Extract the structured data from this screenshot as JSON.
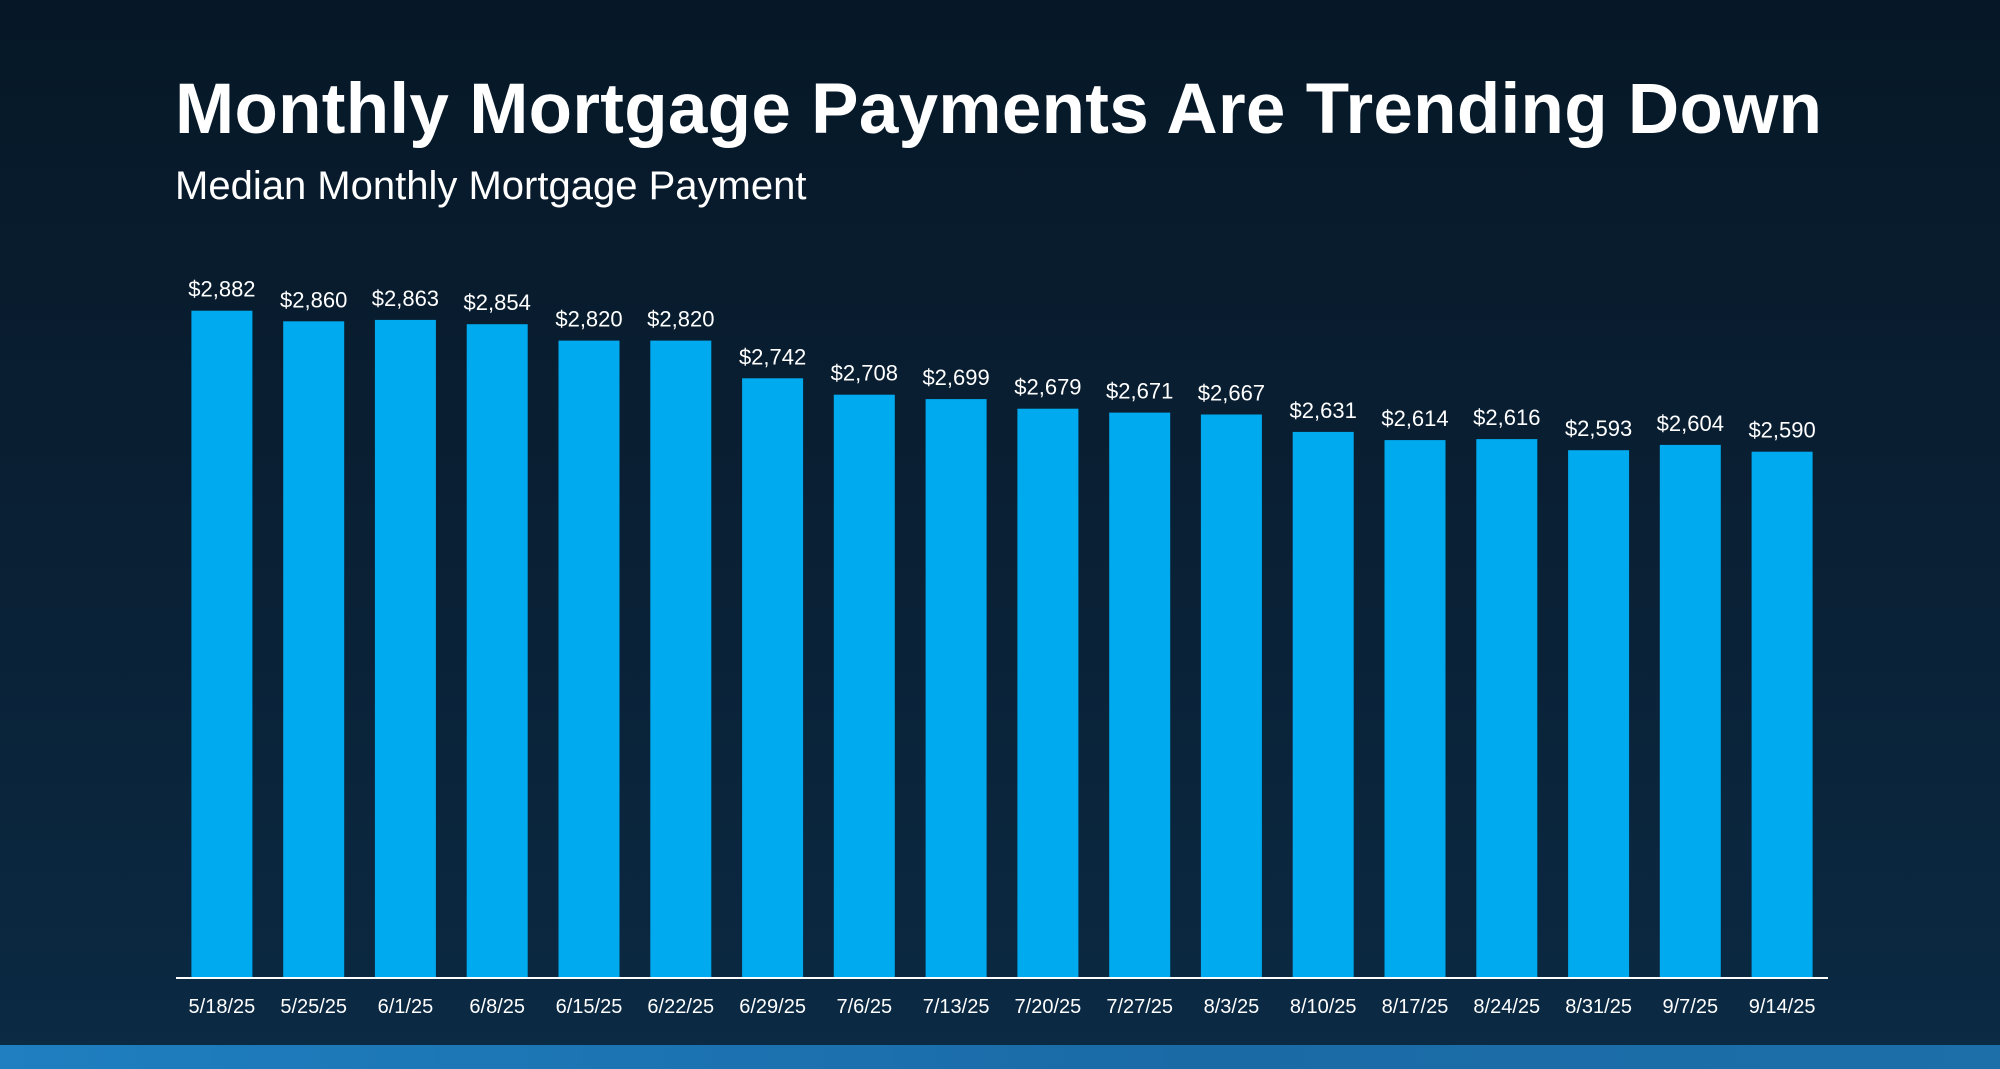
{
  "header": {
    "title": "Monthly Mortgage Payments Are Trending Down",
    "subtitle": "Median Monthly Mortgage Payment"
  },
  "colors": {
    "bar": "#00aaee",
    "text": "#ffffff",
    "axis": "#ffffff",
    "background_top": "#061827",
    "background_bottom": "#0b2a44",
    "bottom_band": "#1f7fc0"
  },
  "chart_data": {
    "type": "bar",
    "title": "Monthly Mortgage Payments Are Trending Down",
    "subtitle": "Median Monthly Mortgage Payment",
    "xlabel": "",
    "ylabel": "",
    "categories": [
      "5/18/25",
      "5/25/25",
      "6/1/25",
      "6/8/25",
      "6/15/25",
      "6/22/25",
      "6/29/25",
      "7/6/25",
      "7/13/25",
      "7/20/25",
      "7/27/25",
      "8/3/25",
      "8/10/25",
      "8/17/25",
      "8/24/25",
      "8/31/25",
      "9/7/25",
      "9/14/25"
    ],
    "values": [
      2882,
      2860,
      2863,
      2854,
      2820,
      2820,
      2742,
      2708,
      2699,
      2679,
      2671,
      2667,
      2631,
      2614,
      2616,
      2593,
      2604,
      2590
    ],
    "data_labels": [
      "$2,882",
      "$2,860",
      "$2,863",
      "$2,854",
      "$2,820",
      "$2,820",
      "$2,742",
      "$2,708",
      "$2,699",
      "$2,679",
      "$2,671",
      "$2,667",
      "$2,631",
      "$2,614",
      "$2,616",
      "$2,593",
      "$2,604",
      "$2,590"
    ],
    "ylim": [
      1500,
      2900
    ],
    "grid": false,
    "legend": "none",
    "y_axis_visible": false
  }
}
